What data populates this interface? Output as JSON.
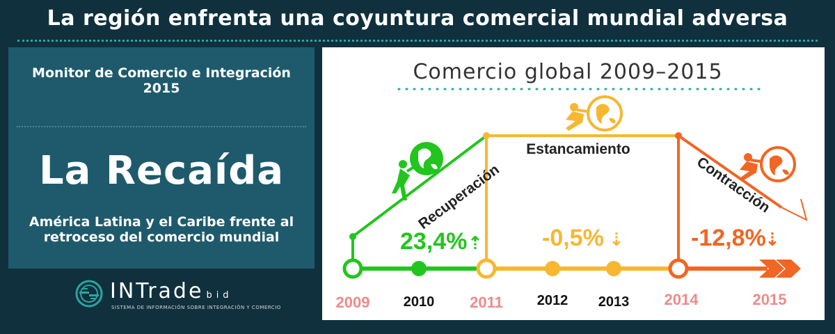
{
  "header": {
    "title": "La región enfrenta una coyuntura comercial mundial adversa"
  },
  "left_panel": {
    "monitor_title_line1": "Monitor de Comercio e Integración",
    "monitor_title_line2": "2015",
    "main_title": "La Recaída",
    "subtitle_line1": "América Latina y el Caribe frente al",
    "subtitle_line2": "retroceso del comercio mundial"
  },
  "logo": {
    "word": "INTrade",
    "suffix": "bid",
    "tagline": "SISTEMA DE INFORMACIÓN SOBRE INTEGRACIÓN Y COMERCIO"
  },
  "chart": {
    "title": "Comercio global 2009–2015",
    "phases": [
      {
        "label": "Recuperación",
        "value": "23,4%",
        "arrow": "⇡",
        "color": "#22c51e"
      },
      {
        "label": "Estancamiento",
        "value": "-0,5%",
        "arrow": "⇣",
        "color": "#f7b731"
      },
      {
        "label": "Contracción",
        "value": "-12,8%",
        "arrow": "⇣",
        "color": "#f26522"
      }
    ],
    "years": [
      {
        "label": "2009",
        "color": "#ef8a8a"
      },
      {
        "label": "2010",
        "color": "#111111"
      },
      {
        "label": "2011",
        "color": "#ef8a8a"
      },
      {
        "label": "2012",
        "color": "#111111"
      },
      {
        "label": "2013",
        "color": "#111111"
      },
      {
        "label": "2014",
        "color": "#ef8a8a"
      },
      {
        "label": "2015",
        "color": "#ef8a8a"
      }
    ]
  }
}
